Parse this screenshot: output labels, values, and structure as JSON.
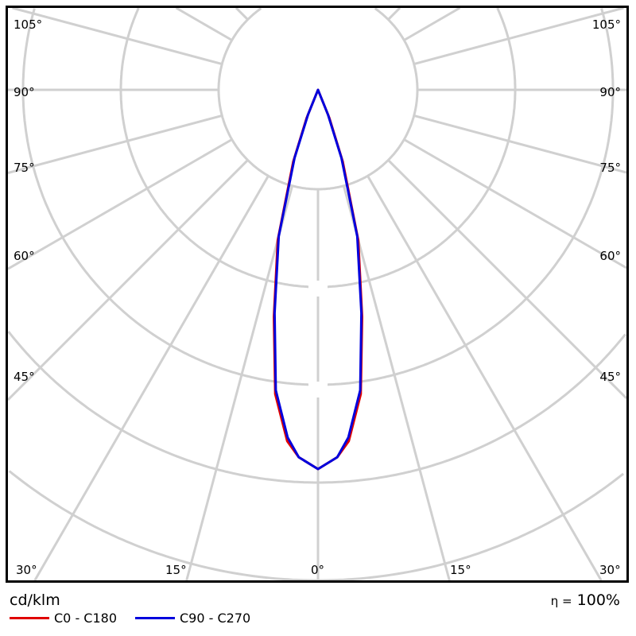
{
  "chart_data": {
    "type": "polar",
    "unit_label": "cd/klm",
    "efficiency_symbol": "η =",
    "efficiency": "100%",
    "angle_labels_left": [
      "105°",
      "90°",
      "75°",
      "60°",
      "45°"
    ],
    "angle_labels_right": [
      "105°",
      "90°",
      "75°",
      "60°",
      "45°"
    ],
    "angle_labels_bottom": [
      "30°",
      "15°",
      "0°",
      "15°",
      "30°"
    ],
    "grid": true,
    "radial_values_relative_to_max": true,
    "series": [
      {
        "name": "C0 - C180",
        "color": "#e00000",
        "angles": [
          0,
          3,
          5,
          8,
          11,
          15,
          19,
          22,
          25
        ],
        "values": [
          1.0,
          0.97,
          0.93,
          0.81,
          0.61,
          0.41,
          0.2,
          0.08,
          0
        ]
      },
      {
        "name": "C90 - C270",
        "color": "#0000dd",
        "angles": [
          0,
          3,
          5,
          8,
          11,
          15,
          19,
          22,
          25
        ],
        "values": [
          1.0,
          0.97,
          0.92,
          0.8,
          0.6,
          0.4,
          0.19,
          0.07,
          0
        ]
      }
    ]
  }
}
